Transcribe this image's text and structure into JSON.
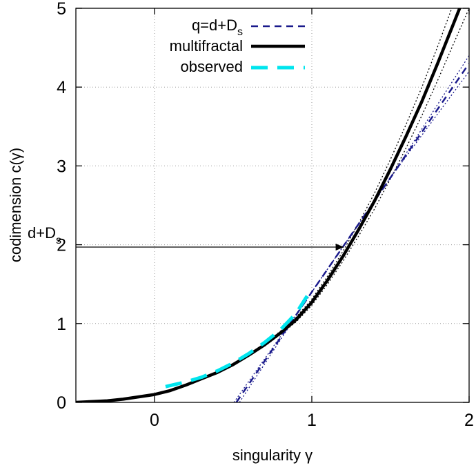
{
  "chart_data": {
    "type": "line",
    "xlabel": "singularity γ",
    "ylabel": "codimension c(γ)",
    "xlim": [
      -0.5,
      2
    ],
    "ylim": [
      0,
      5
    ],
    "xticks": [
      0,
      1,
      2
    ],
    "yticks": [
      0,
      1,
      2,
      3,
      4,
      5
    ],
    "xtick_labels": [
      "0",
      "1",
      "2"
    ],
    "ytick_labels": [
      "0",
      "1",
      "2",
      "3",
      "4",
      "5"
    ],
    "grid": true,
    "legend_position": "top-left",
    "series": [
      {
        "name": "q=d+D",
        "name_subscript": "s",
        "color": "#1a1a8c",
        "style": "dashed",
        "x": [
          0.52,
          1.0,
          1.5,
          2.0
        ],
        "y": [
          0.0,
          1.4,
          2.85,
          4.3
        ]
      },
      {
        "name": "multifractal",
        "color": "#000000",
        "style": "solid",
        "x": [
          -0.5,
          -0.4,
          -0.3,
          -0.2,
          -0.1,
          0.0,
          0.1,
          0.2,
          0.3,
          0.4,
          0.5,
          0.6,
          0.7,
          0.8,
          0.9,
          1.0,
          1.1,
          1.2,
          1.3,
          1.4,
          1.5,
          1.6,
          1.7,
          1.8,
          1.9,
          2.0
        ],
        "y": [
          0.0,
          0.01,
          0.02,
          0.04,
          0.07,
          0.1,
          0.15,
          0.22,
          0.3,
          0.38,
          0.48,
          0.6,
          0.73,
          0.88,
          1.05,
          1.27,
          1.55,
          1.86,
          2.2,
          2.56,
          2.96,
          3.38,
          3.82,
          4.3,
          4.8,
          5.3
        ]
      },
      {
        "name": "observed",
        "color": "#00e5ee",
        "style": "long-dashed",
        "x": [
          0.07,
          0.2,
          0.3,
          0.4,
          0.5,
          0.6,
          0.7,
          0.8,
          0.9,
          0.97
        ],
        "y": [
          0.2,
          0.26,
          0.32,
          0.4,
          0.5,
          0.62,
          0.76,
          0.92,
          1.13,
          1.35
        ]
      }
    ],
    "annotation": {
      "label": "d+D",
      "label_subscript": "s",
      "y": 1.97,
      "arrow_to_x": 1.2
    },
    "bands": {
      "multifractal_upper_end": 5.6,
      "multifractal_lower_end": 5.0,
      "tangent_upper_end": 4.4,
      "tangent_lower_end": 4.2
    }
  }
}
